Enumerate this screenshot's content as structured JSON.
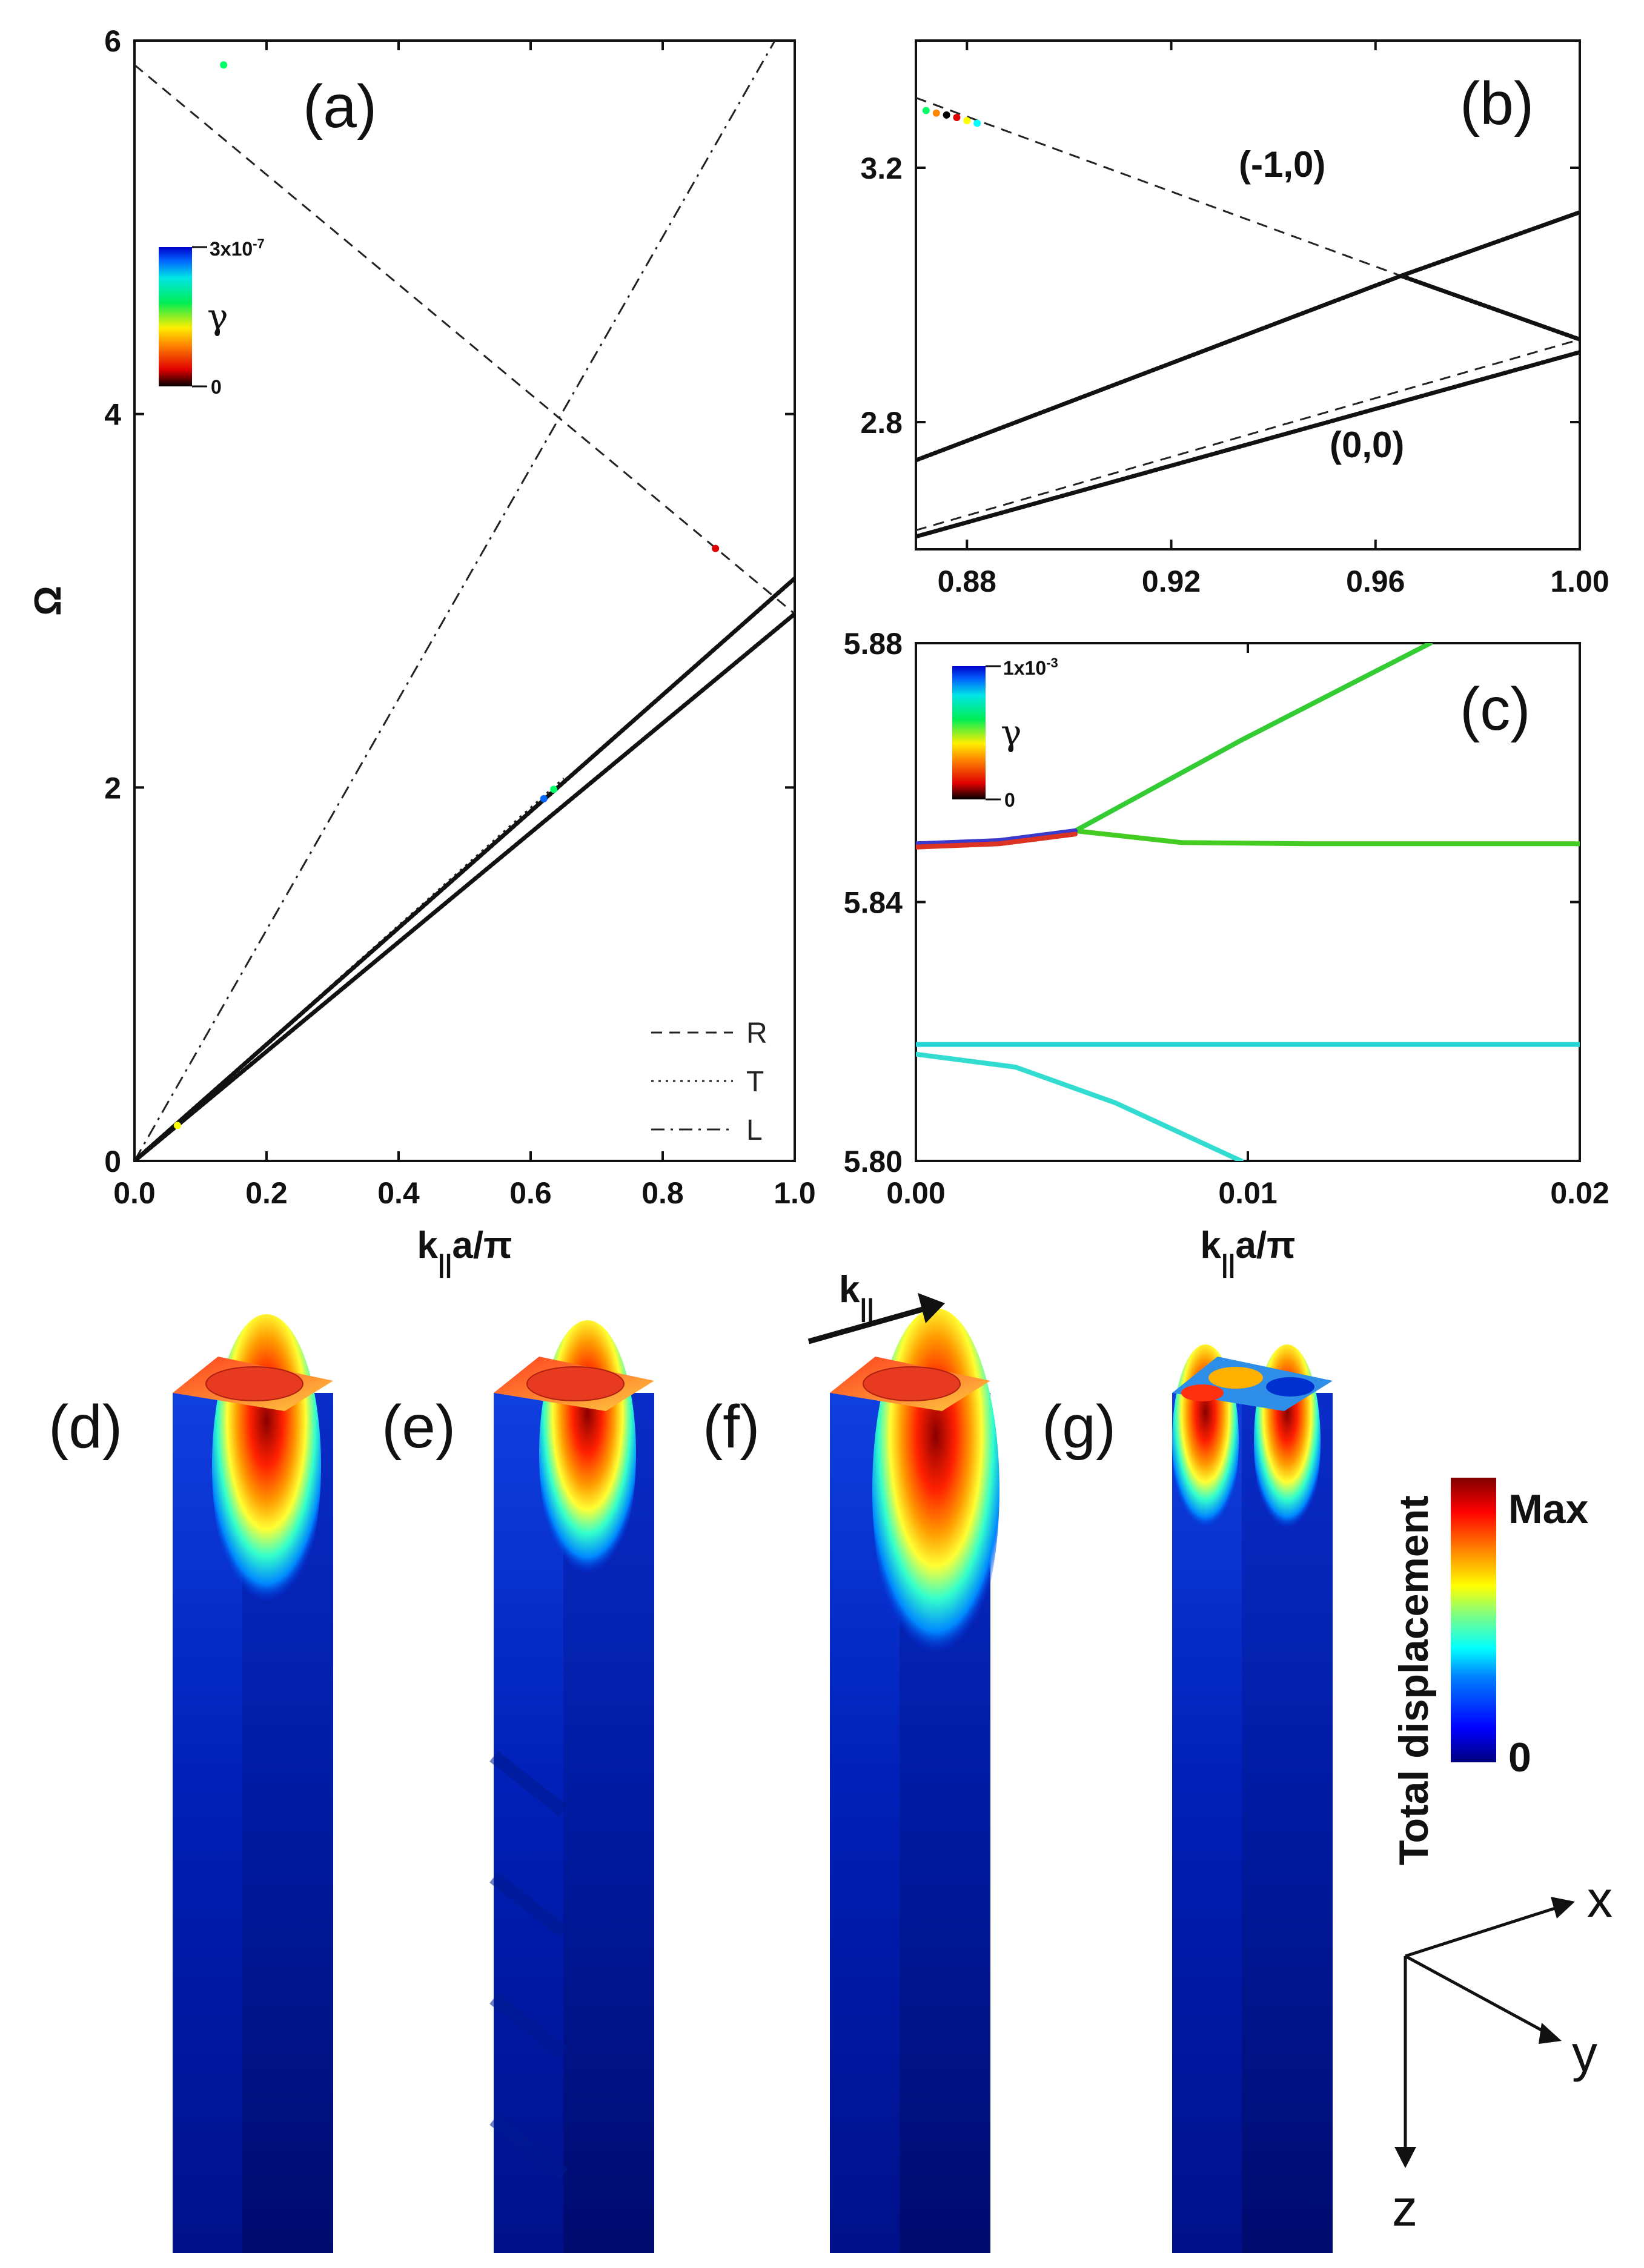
{
  "chart_data": [
    {
      "id": "a",
      "panel_label": "(a)",
      "type": "scatter",
      "xlabel": "k||a/π",
      "xlabel_main": "k",
      "xlabel_sub": "||",
      "xlabel_rest": "a/π",
      "ylabel": "Ω",
      "xlim": [
        0.0,
        1.0
      ],
      "ylim": [
        0,
        6
      ],
      "x_ticks": [
        "0.0",
        "0.2",
        "0.4",
        "0.6",
        "0.8",
        "1.0"
      ],
      "y_ticks": [
        "0",
        "2",
        "4",
        "6"
      ],
      "lines": [
        {
          "name": "R",
          "style": "dashed",
          "points": [
            [
              0.0,
              5.87
            ],
            [
              1.0,
              2.93
            ]
          ]
        },
        {
          "name": "T",
          "style": "dotted",
          "points": [
            [
              0.0,
              0.0
            ],
            [
              0.65,
              2.05
            ]
          ]
        },
        {
          "name": "L",
          "style": "dashdot",
          "points": [
            [
              0.0,
              0.0
            ],
            [
              0.97,
              6.0
            ]
          ]
        }
      ],
      "series": [
        {
          "name": "lower band",
          "points": [
            [
              0.0,
              0.0
            ],
            [
              1.0,
              2.93
            ]
          ]
        },
        {
          "name": "upper band",
          "points": [
            [
              0.0,
              0.0
            ],
            [
              1.0,
              3.12
            ]
          ]
        }
      ],
      "colored_points": [
        {
          "x": 0.135,
          "y": 5.87,
          "gamma_frac": 0.6
        },
        {
          "x": 0.88,
          "y": 3.28,
          "gamma_frac": 0.1
        },
        {
          "x": 0.62,
          "y": 1.94,
          "gamma_frac": 0.9
        },
        {
          "x": 0.635,
          "y": 1.99,
          "gamma_frac": 0.5
        },
        {
          "x": 0.065,
          "y": 0.19,
          "gamma_frac": 0.45
        }
      ],
      "legend": [
        "R",
        "T",
        "L"
      ],
      "legend_position": "bottom-right",
      "colorbar": {
        "label": "γ",
        "max": "3x10",
        "max_exp": "-7",
        "min": "0"
      }
    },
    {
      "id": "b",
      "panel_label": "(b)",
      "type": "scatter",
      "xlim": [
        0.87,
        1.0
      ],
      "ylim": [
        2.6,
        3.4
      ],
      "x_ticks": [
        "0.88",
        "0.92",
        "0.96",
        "1.00"
      ],
      "y_ticks": [
        "2.8",
        "3.2"
      ],
      "annotations": [
        "(-1,0)",
        "(0,0)"
      ],
      "lines": [
        {
          "name": "R",
          "style": "dashed",
          "points": [
            [
              0.87,
              3.31
            ],
            [
              0.965,
              3.03
            ],
            [
              1.0,
              2.93
            ]
          ]
        },
        {
          "name": "T",
          "style": "dashed",
          "points": [
            [
              0.87,
              2.63
            ],
            [
              1.0,
              2.93
            ]
          ]
        }
      ],
      "series": [
        {
          "name": "upper band",
          "points": [
            [
              0.87,
              2.74
            ],
            [
              0.965,
              3.03
            ],
            [
              1.0,
              3.13
            ]
          ]
        },
        {
          "name": "folded branch",
          "points": [
            [
              0.965,
              3.03
            ],
            [
              1.0,
              2.93
            ]
          ]
        },
        {
          "name": "lower band",
          "points": [
            [
              0.87,
              2.62
            ],
            [
              1.0,
              2.91
            ]
          ]
        }
      ],
      "colored_points": [
        {
          "x": 0.872,
          "y": 3.29,
          "gamma_frac": 0.55
        },
        {
          "x": 0.874,
          "y": 3.286,
          "gamma_frac": 0.3
        },
        {
          "x": 0.876,
          "y": 3.283,
          "gamma_frac": 0.0
        },
        {
          "x": 0.878,
          "y": 3.279,
          "gamma_frac": 0.1
        },
        {
          "x": 0.88,
          "y": 3.274,
          "gamma_frac": 0.45
        },
        {
          "x": 0.882,
          "y": 3.27,
          "gamma_frac": 0.75
        }
      ]
    },
    {
      "id": "c",
      "panel_label": "(c)",
      "type": "line",
      "xlabel": "k||a/π",
      "xlabel_main": "k",
      "xlabel_sub": "||",
      "xlabel_rest": "a/π",
      "xlim": [
        0.0,
        0.02
      ],
      "ylim": [
        5.8,
        5.88
      ],
      "x_ticks": [
        "0.00",
        "0.01",
        "0.02"
      ],
      "y_ticks": [
        "5.80",
        "5.84",
        "5.88"
      ],
      "series": [
        {
          "name": "rising branch",
          "color": "#33cc33",
          "points": [
            [
              0.0048,
              5.851
            ],
            [
              0.0098,
              5.865
            ],
            [
              0.0155,
              5.88
            ]
          ]
        },
        {
          "name": "flat upper branch",
          "color": "#44cc22",
          "points": [
            [
              0.0048,
              5.851
            ],
            [
              0.008,
              5.8492
            ],
            [
              0.012,
              5.849
            ],
            [
              0.02,
              5.849
            ]
          ]
        },
        {
          "name": "upper mixed branch",
          "color": "#3a3acc",
          "points": [
            [
              0.0,
              5.849
            ],
            [
              0.0025,
              5.8495
            ],
            [
              0.0048,
              5.851
            ]
          ]
        },
        {
          "name": "lower mixed branch",
          "color": "#dd3322",
          "points": [
            [
              0.0,
              5.8485
            ],
            [
              0.0025,
              5.849
            ],
            [
              0.0048,
              5.8505
            ]
          ]
        },
        {
          "name": "flat lower branch",
          "color": "#22d4d4",
          "points": [
            [
              0.0,
              5.818
            ],
            [
              0.02,
              5.818
            ]
          ]
        },
        {
          "name": "falling branch",
          "color": "#33dcd0",
          "points": [
            [
              0.0,
              5.8165
            ],
            [
              0.003,
              5.8145
            ],
            [
              0.006,
              5.809
            ],
            [
              0.0098,
              5.8
            ]
          ]
        }
      ],
      "colorbar": {
        "label": "γ",
        "max": "1x10",
        "max_exp": "-3",
        "min": "0"
      }
    }
  ],
  "field_panels": [
    {
      "id": "d",
      "label": "(d)"
    },
    {
      "id": "e",
      "label": "(e)"
    },
    {
      "id": "f",
      "label": "(f)",
      "arrow_label": "k||",
      "arrow_main": "k",
      "arrow_sub": "||"
    },
    {
      "id": "g",
      "label": "(g)"
    }
  ],
  "displacement_colorbar": {
    "title": "Total displacement",
    "max": "Max",
    "min": "0"
  },
  "axes_3d": {
    "x": "x",
    "y": "y",
    "z": "z"
  },
  "colormap": [
    "#000000",
    "#e00000",
    "#ff8800",
    "#ffff00",
    "#00ff66",
    "#00ffff",
    "#0066ff",
    "#0000cc"
  ],
  "jet": [
    "#00007f",
    "#0000ff",
    "#0080ff",
    "#00ffff",
    "#80ff80",
    "#ffff00",
    "#ff8000",
    "#ff0000",
    "#800000"
  ]
}
